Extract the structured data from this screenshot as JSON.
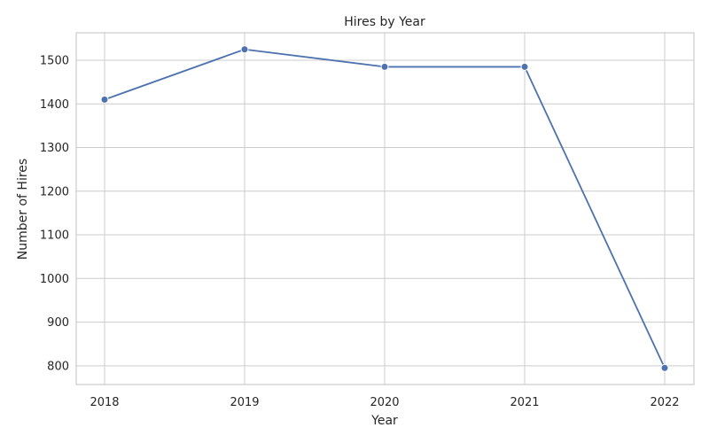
{
  "chart_data": {
    "type": "line",
    "title": "Hires by Year",
    "xlabel": "Year",
    "ylabel": "Number of Hires",
    "x": [
      "2018",
      "2019",
      "2020",
      "2021",
      "2022"
    ],
    "series": [
      {
        "values": [
          1410,
          1525,
          1485,
          1485,
          795
        ],
        "color": "#4c72b0"
      }
    ],
    "ylim": [
      757,
      1563
    ],
    "yticks": [
      800,
      900,
      1000,
      1100,
      1200,
      1300,
      1400,
      1500
    ],
    "grid": true,
    "markers": true,
    "colors": {
      "grid": "#cccccc",
      "axes": "#cccccc",
      "text": "#262626"
    }
  }
}
